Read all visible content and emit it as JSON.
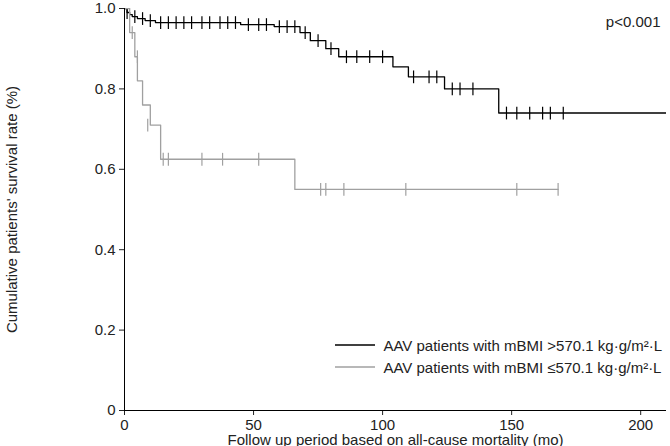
{
  "chart_data": {
    "type": "step",
    "xlabel": "Follow up period based on all-cause mortality (mo)",
    "ylabel": "Cumulative patients' survival rate (%)",
    "annotation": "p<0.001",
    "xlim": [
      0,
      210
    ],
    "xticks": [
      0,
      50,
      100,
      150,
      200
    ],
    "ylim": [
      0,
      1.0
    ],
    "yticks": [
      0,
      0.2,
      0.4,
      0.6,
      0.8,
      {
        "value": 1.0,
        "label": "1.0"
      }
    ],
    "legend": "bottom-right",
    "series": [
      {
        "name": "AAV patients with mBMI >570.1 kg·g/m²·L",
        "color": "#000000",
        "marker": "tick",
        "line_style": "solid",
        "x": [
          0,
          1,
          2,
          3,
          5,
          8,
          12,
          45,
          58,
          68,
          72,
          78,
          83,
          104,
          110,
          124,
          145,
          210
        ],
        "values": [
          1.0,
          0.99,
          0.985,
          0.98,
          0.975,
          0.97,
          0.965,
          0.96,
          0.955,
          0.94,
          0.92,
          0.9,
          0.88,
          0.855,
          0.83,
          0.8,
          0.74,
          0.74
        ],
        "censored": [
          [
            1,
            0.99
          ],
          [
            4,
            0.98
          ],
          [
            7,
            0.975
          ],
          [
            10,
            0.97
          ],
          [
            14,
            0.965
          ],
          [
            17,
            0.965
          ],
          [
            20,
            0.965
          ],
          [
            23,
            0.965
          ],
          [
            26,
            0.965
          ],
          [
            30,
            0.965
          ],
          [
            33,
            0.965
          ],
          [
            37,
            0.965
          ],
          [
            40,
            0.965
          ],
          [
            43,
            0.965
          ],
          [
            48,
            0.96
          ],
          [
            52,
            0.96
          ],
          [
            55,
            0.96
          ],
          [
            60,
            0.955
          ],
          [
            63,
            0.955
          ],
          [
            66,
            0.955
          ],
          [
            70,
            0.94
          ],
          [
            75,
            0.92
          ],
          [
            80,
            0.9
          ],
          [
            86,
            0.88
          ],
          [
            90,
            0.88
          ],
          [
            95,
            0.88
          ],
          [
            100,
            0.88
          ],
          [
            112,
            0.83
          ],
          [
            118,
            0.83
          ],
          [
            121,
            0.83
          ],
          [
            127,
            0.8
          ],
          [
            130,
            0.8
          ],
          [
            135,
            0.8
          ],
          [
            148,
            0.74
          ],
          [
            152,
            0.74
          ],
          [
            157,
            0.74
          ],
          [
            162,
            0.74
          ],
          [
            165,
            0.74
          ],
          [
            170,
            0.74
          ]
        ]
      },
      {
        "name": "AAV patients with mBMI ≤570.1 kg·g/m²·L",
        "color": "#a0a0a0",
        "marker": "tick",
        "line_style": "solid",
        "x": [
          0,
          2,
          4,
          5,
          7,
          10,
          14,
          66,
          168
        ],
        "values": [
          1.0,
          0.94,
          0.88,
          0.82,
          0.76,
          0.71,
          0.625,
          0.55,
          0.55
        ],
        "censored": [
          [
            3,
            0.94
          ],
          [
            5,
            0.88
          ],
          [
            9,
            0.71
          ],
          [
            15,
            0.625
          ],
          [
            17,
            0.625
          ],
          [
            30,
            0.625
          ],
          [
            38,
            0.625
          ],
          [
            52,
            0.625
          ],
          [
            76,
            0.55
          ],
          [
            78,
            0.55
          ],
          [
            85,
            0.55
          ],
          [
            109,
            0.55
          ],
          [
            152,
            0.55
          ],
          [
            168,
            0.55
          ]
        ]
      }
    ]
  }
}
